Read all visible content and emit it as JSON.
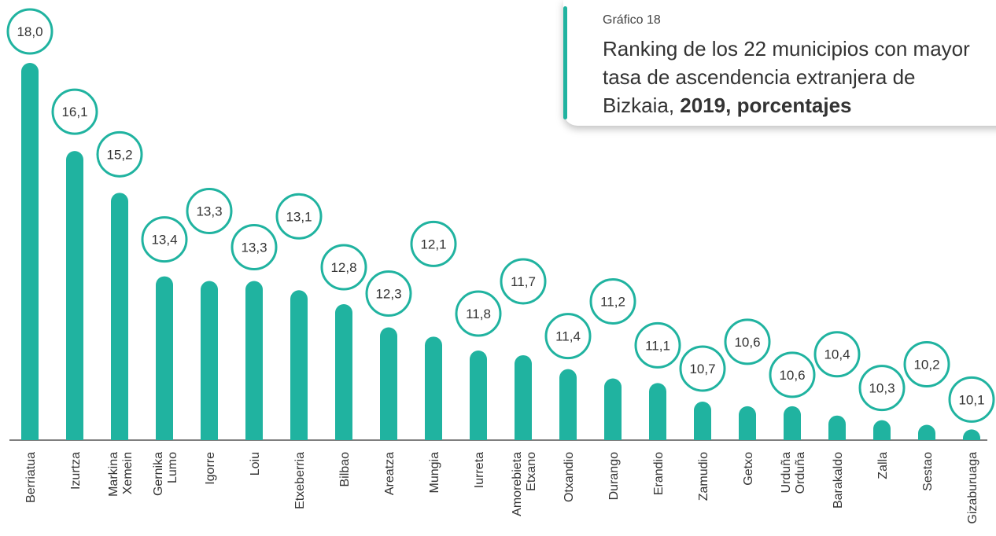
{
  "chart_data": {
    "type": "bar",
    "subtitle": "Gráfico 18",
    "title": "Ranking de los 22 municipios con mayor tasa de ascendencia extranjera de Bizkaia,",
    "title_bold": "2019, porcentajes",
    "categories": [
      "Berriatua",
      "Izurtza",
      "Markina\nXemein",
      "Gernika\nLumo",
      "Igorre",
      "Loiu",
      "Etxeberria",
      "Bilbao",
      "Areatza",
      "Mungia",
      "Iurreta",
      "Amorebieta\nEtxano",
      "Otxandio",
      "Durango",
      "Erandio",
      "Zamudio",
      "Getxo",
      "Urduña\nOrduña",
      "Barakaldo",
      "Zalla",
      "Sestao",
      "Gizaburuaga"
    ],
    "values": [
      18.0,
      16.1,
      15.2,
      13.4,
      13.3,
      13.3,
      13.1,
      12.8,
      12.3,
      12.1,
      11.8,
      11.7,
      11.4,
      11.2,
      11.1,
      10.7,
      10.6,
      10.6,
      10.4,
      10.3,
      10.2,
      10.1
    ],
    "value_labels": [
      "18,0",
      "16,1",
      "15,2",
      "13,4",
      "13,3",
      "13,3",
      "13,1",
      "12,8",
      "12,3",
      "12,1",
      "11,8",
      "11,7",
      "11,4",
      "11,2",
      "11,1",
      "10,7",
      "10,6",
      "10,6",
      "10,4",
      "10,3",
      "10,2",
      "10,1"
    ],
    "color": "#20b3a0",
    "ylim": [
      9.87,
      18.0
    ]
  }
}
